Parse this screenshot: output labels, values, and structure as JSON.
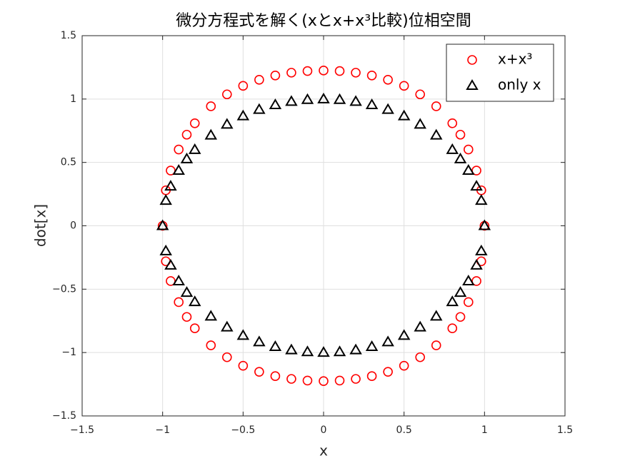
{
  "chart_data": {
    "type": "scatter",
    "title": "微分方程式を解く(xとx+x³比較)位相空間",
    "x_label": "x",
    "y_label": "dot[x]",
    "xlim": [
      -1.5,
      1.5
    ],
    "ylim": [
      -1.5,
      1.5
    ],
    "xticks": [
      {
        "value": -1.5,
        "label": "−1.5"
      },
      {
        "value": -1,
        "label": "−1"
      },
      {
        "value": -0.5,
        "label": "−0.5"
      },
      0,
      0.5,
      1,
      1.5
    ],
    "yticks": [
      {
        "value": -1.5,
        "label": "−1.5"
      },
      {
        "value": -1,
        "label": "−1"
      },
      {
        "value": -0.5,
        "label": "−0.5"
      },
      0,
      0.5,
      1,
      1.5
    ],
    "grid": true,
    "legend": "northeast",
    "series": [
      {
        "name": "x+x³",
        "color": "#ff0000",
        "marker": "circle",
        "x": [
          -1,
          -0.98,
          -0.95,
          -0.9,
          -0.85,
          -0.8,
          -0.7,
          -0.6,
          -0.5,
          -0.4,
          -0.3,
          -0.2,
          -0.1,
          0,
          0.1,
          0.2,
          0.3,
          0.4,
          0.5,
          0.6,
          0.7,
          0.8,
          0.85,
          0.9,
          0.95,
          0.98,
          1,
          0.98,
          0.95,
          0.9,
          0.85,
          0.8,
          0.7,
          0.6,
          0.5,
          0.4,
          0.3,
          0.2,
          0.1,
          0,
          -0.1,
          -0.2,
          -0.3,
          -0.4,
          -0.5,
          -0.6,
          -0.7,
          -0.8,
          -0.85,
          -0.9,
          -0.95,
          -0.98
        ],
        "values": [
          0,
          0.28,
          0.436,
          0.602,
          0.719,
          0.809,
          0.943,
          1.037,
          1.104,
          1.152,
          1.186,
          1.208,
          1.221,
          1.225,
          1.221,
          1.208,
          1.186,
          1.152,
          1.104,
          1.037,
          0.943,
          0.809,
          0.719,
          0.602,
          0.436,
          0.28,
          0,
          -0.28,
          -0.436,
          -0.602,
          -0.719,
          -0.809,
          -0.943,
          -1.037,
          -1.104,
          -1.152,
          -1.186,
          -1.208,
          -1.221,
          -1.225,
          -1.221,
          -1.208,
          -1.186,
          -1.152,
          -1.104,
          -1.037,
          -0.943,
          -0.809,
          -0.719,
          -0.602,
          -0.436,
          -0.28
        ]
      },
      {
        "name": "only x",
        "color": "#000000",
        "marker": "triangle",
        "x": [
          -1,
          -0.98,
          -0.95,
          -0.9,
          -0.85,
          -0.8,
          -0.7,
          -0.6,
          -0.5,
          -0.4,
          -0.3,
          -0.2,
          -0.1,
          0,
          0.1,
          0.2,
          0.3,
          0.4,
          0.5,
          0.6,
          0.7,
          0.8,
          0.85,
          0.9,
          0.95,
          0.98,
          1,
          0.98,
          0.95,
          0.9,
          0.85,
          0.8,
          0.7,
          0.6,
          0.5,
          0.4,
          0.3,
          0.2,
          0.1,
          0,
          -0.1,
          -0.2,
          -0.3,
          -0.4,
          -0.5,
          -0.6,
          -0.7,
          -0.8,
          -0.85,
          -0.9,
          -0.95,
          -0.98
        ],
        "values": [
          0,
          0.199,
          0.312,
          0.436,
          0.527,
          0.6,
          0.714,
          0.8,
          0.866,
          0.917,
          0.954,
          0.98,
          0.995,
          1,
          0.995,
          0.98,
          0.954,
          0.917,
          0.866,
          0.8,
          0.714,
          0.6,
          0.527,
          0.436,
          0.312,
          0.199,
          0,
          -0.199,
          -0.312,
          -0.436,
          -0.527,
          -0.6,
          -0.714,
          -0.8,
          -0.866,
          -0.917,
          -0.954,
          -0.98,
          -0.995,
          -1,
          -0.995,
          -0.98,
          -0.954,
          -0.917,
          -0.866,
          -0.8,
          -0.714,
          -0.6,
          -0.527,
          -0.436,
          -0.312,
          -0.199
        ]
      }
    ]
  }
}
